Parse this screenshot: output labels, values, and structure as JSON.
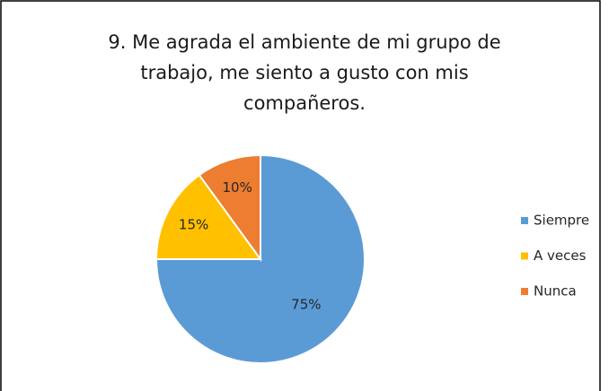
{
  "chart_data": {
    "type": "pie",
    "title": "9. Me agrada el ambiente de mi grupo de trabajo, me siento a gusto con mis compañeros.",
    "categories": [
      "Siempre",
      "A veces",
      "Nunca"
    ],
    "values": [
      75,
      15,
      10
    ],
    "value_labels": [
      "75%",
      "15%",
      "10%"
    ],
    "colors": [
      "#5b9bd5",
      "#ffc000",
      "#ed7d31"
    ],
    "legend": "right"
  }
}
